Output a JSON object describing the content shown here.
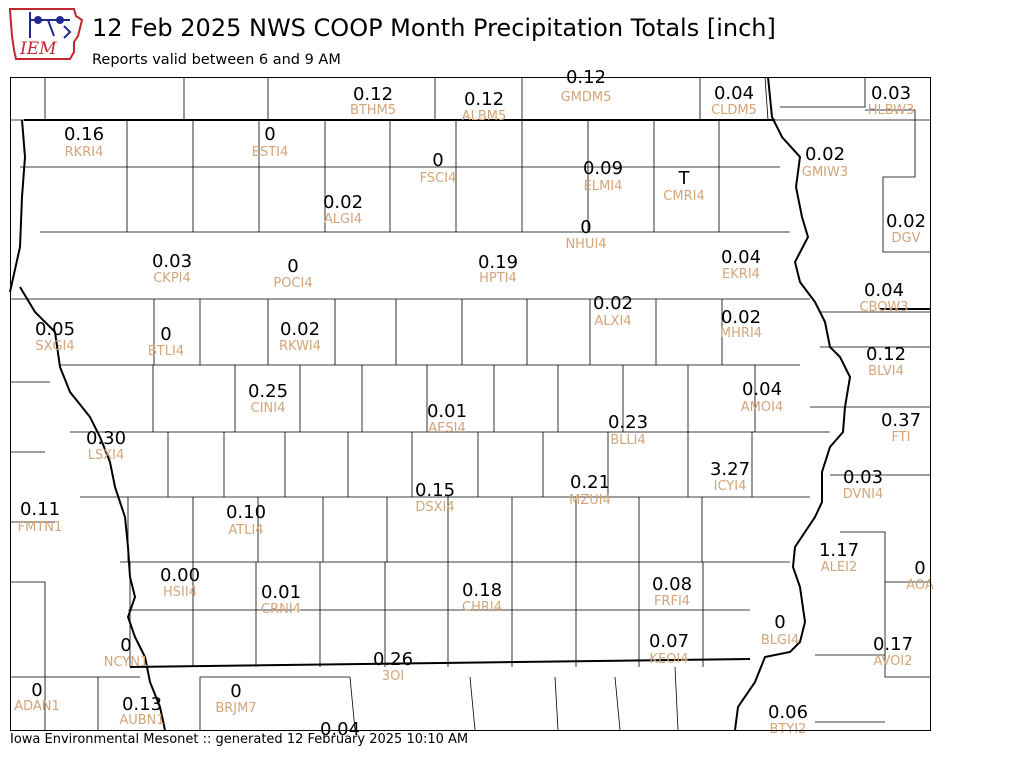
{
  "header": {
    "title": "12 Feb 2025 NWS COOP Month Precipitation Totals [inch]",
    "subtitle": "Reports valid between 6 and 9 AM",
    "logo_text": "IEM"
  },
  "footer": {
    "text": "Iowa Environmental Mesonet :: generated 12 February 2025 10:10 AM"
  },
  "colors": {
    "value_text": "#000000",
    "station_text": "#d4a57a",
    "county_lines": "#000000",
    "logo_red": "#c0282d",
    "logo_blue": "#1f2a8a"
  },
  "stations": [
    {
      "value": "0.12",
      "id": "BTHM5"
    },
    {
      "value": "0.12",
      "id": "ALBM5"
    },
    {
      "value": "0.12",
      "id": "GMDM5"
    },
    {
      "value": "0.04",
      "id": "CLDM5"
    },
    {
      "value": "0.03",
      "id": "HLBW3"
    },
    {
      "value": "0.16",
      "id": "RKRI4"
    },
    {
      "value": "0",
      "id": "ESTI4"
    },
    {
      "value": "0",
      "id": "FSCI4"
    },
    {
      "value": "0.09",
      "id": "ELMI4"
    },
    {
      "value": "T",
      "id": "CMRI4"
    },
    {
      "value": "0.02",
      "id": "GMIW3"
    },
    {
      "value": "0.02",
      "id": "ALGI4"
    },
    {
      "value": "0",
      "id": "NHUI4"
    },
    {
      "value": "0.02",
      "id": "DGV"
    },
    {
      "value": "0.03",
      "id": "CKPI4"
    },
    {
      "value": "0",
      "id": "POCI4"
    },
    {
      "value": "0.19",
      "id": "HPTI4"
    },
    {
      "value": "0.04",
      "id": "EKRI4"
    },
    {
      "value": "0.04",
      "id": "CBOW3"
    },
    {
      "value": "0.02",
      "id": "ALXI4"
    },
    {
      "value": "0.05",
      "id": "SXGI4"
    },
    {
      "value": "0",
      "id": "BTLI4"
    },
    {
      "value": "0.02",
      "id": "RKWI4"
    },
    {
      "value": "0.02",
      "id": "MHRI4"
    },
    {
      "value": "0.12",
      "id": "BLVI4"
    },
    {
      "value": "0.25",
      "id": "CINI4"
    },
    {
      "value": "0.04",
      "id": "AMOI4"
    },
    {
      "value": "0.01",
      "id": "AESI4"
    },
    {
      "value": "0.37",
      "id": "FTI"
    },
    {
      "value": "0.30",
      "id": "LSXI4"
    },
    {
      "value": "0.23",
      "id": "BLLI4"
    },
    {
      "value": "3.27",
      "id": "ICYI4"
    },
    {
      "value": "0.03",
      "id": "DVNI4"
    },
    {
      "value": "0.21",
      "id": "MZUI4"
    },
    {
      "value": "0.15",
      "id": "DSXI4"
    },
    {
      "value": "0.11",
      "id": "FMTN1"
    },
    {
      "value": "0.10",
      "id": "ATLI4"
    },
    {
      "value": "1.17",
      "id": "ALEI2"
    },
    {
      "value": "0",
      "id": "AOA"
    },
    {
      "value": "0.00",
      "id": "HSII4"
    },
    {
      "value": "0.01",
      "id": "CRNI4"
    },
    {
      "value": "0.18",
      "id": "CHRI4"
    },
    {
      "value": "0.08",
      "id": "FRFI4"
    },
    {
      "value": "0",
      "id": "BLGI4"
    },
    {
      "value": "0",
      "id": "NCYN1"
    },
    {
      "value": "0.07",
      "id": "KEOI4"
    },
    {
      "value": "0.17",
      "id": "AVOI2"
    },
    {
      "value": "0.26",
      "id": "3OI"
    },
    {
      "value": "0",
      "id": "ADAN1"
    },
    {
      "value": "0.13",
      "id": "AUBN1"
    },
    {
      "value": "0",
      "id": "BRJM7"
    },
    {
      "value": "0.06",
      "id": "BTYI2"
    },
    {
      "value": "0.04",
      "id": ""
    }
  ]
}
